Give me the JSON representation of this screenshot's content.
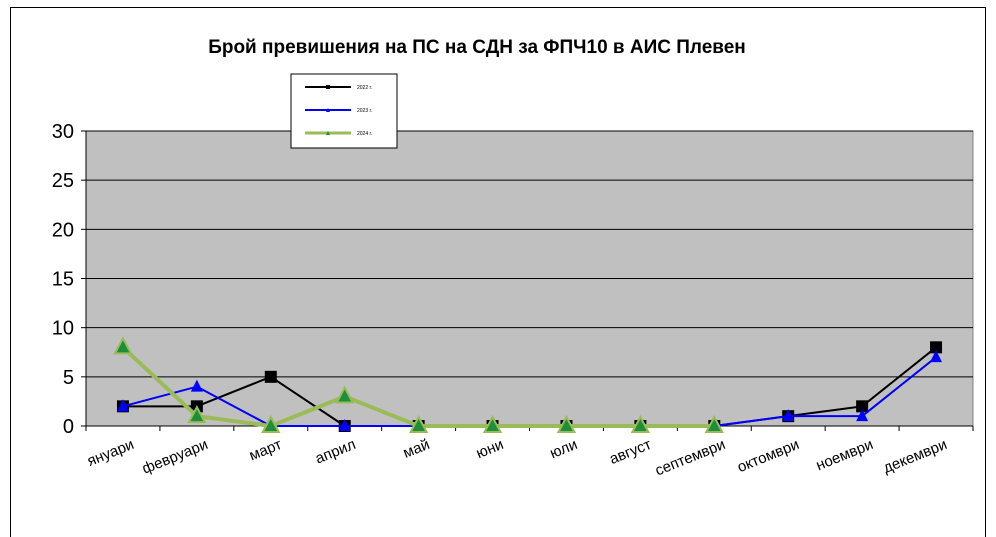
{
  "chart_data": {
    "type": "line",
    "title": "Брой превишения на ПС на СДН за ФПЧ10 в АИС Плевен",
    "xlabel": "",
    "ylabel": "",
    "categories": [
      "януари",
      "февруари",
      "март",
      "април",
      "май",
      "юни",
      "юли",
      "август",
      "септември",
      "октомври",
      "ноември",
      "декември"
    ],
    "ylim": [
      0,
      30
    ],
    "yticks": [
      0,
      5,
      10,
      15,
      20,
      25,
      30
    ],
    "grid": true,
    "legend_position": "top-left",
    "plot_background": "#c0c0c0",
    "series": [
      {
        "name": "2022 г.",
        "color": "#000000",
        "marker": "square",
        "values": [
          2,
          2,
          5,
          0,
          0,
          0,
          0,
          0,
          0,
          1,
          2,
          8
        ]
      },
      {
        "name": "2023 г.",
        "color": "#0000ff",
        "marker": "triangle",
        "values": [
          2,
          4,
          0,
          0,
          0,
          0,
          0,
          0,
          0,
          1,
          1,
          7
        ]
      },
      {
        "name": "2024 г.",
        "color": "#9bbb59",
        "marker": "triangle-green",
        "values": [
          8,
          1,
          0,
          3,
          0,
          0,
          0,
          0,
          0,
          null,
          null,
          null
        ]
      }
    ]
  }
}
